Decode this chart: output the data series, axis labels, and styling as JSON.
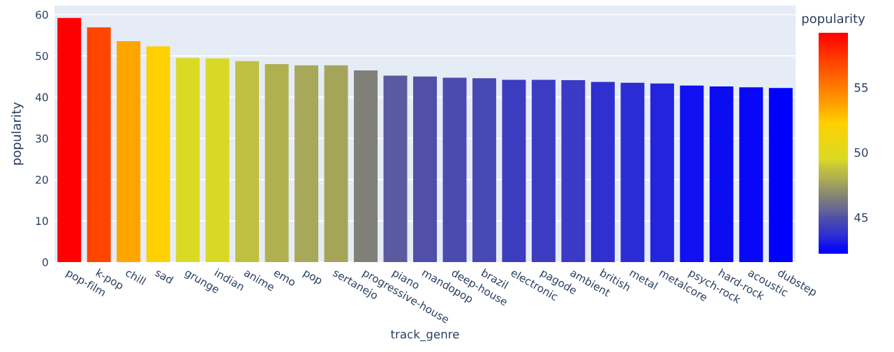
{
  "chart_data": {
    "type": "bar",
    "xlabel": "track_genre",
    "ylabel": "popularity",
    "clabel": "popularity",
    "categories": [
      "pop-film",
      "k-pop",
      "chill",
      "sad",
      "grunge",
      "indian",
      "anime",
      "emo",
      "pop",
      "sertanejo",
      "progressive-house",
      "piano",
      "mandopop",
      "deep-house",
      "brazil",
      "electronic",
      "pagode",
      "ambient",
      "british",
      "metal",
      "metalcore",
      "psych-rock",
      "hard-rock",
      "acoustic",
      "dubstep"
    ],
    "values": [
      59.2,
      56.9,
      53.6,
      52.3,
      49.5,
      49.4,
      48.7,
      48.0,
      47.7,
      47.7,
      46.5,
      45.2,
      45.0,
      44.7,
      44.6,
      44.2,
      44.2,
      44.1,
      43.7,
      43.5,
      43.3,
      42.8,
      42.6,
      42.4,
      42.2
    ],
    "colors": [
      "#ff0000",
      "#ff4500",
      "#ffa500",
      "#ffd000",
      "#dada24",
      "#d9d826",
      "#c0c040",
      "#b0b050",
      "#a8a85a",
      "#a5a55a",
      "#808078",
      "#5a5aa0",
      "#5050a8",
      "#4a4ab0",
      "#4848b2",
      "#3c3cc0",
      "#3c3cc2",
      "#3a3ac4",
      "#3030d0",
      "#2c2cd4",
      "#2424dc",
      "#1010f0",
      "#0c0cf2",
      "#0808f6",
      "#0000ff"
    ],
    "ylim": [
      0,
      62.2
    ],
    "yticks": [
      0,
      10,
      20,
      30,
      40,
      50,
      60
    ],
    "grid": "y",
    "legend": false,
    "clim": [
      42.2,
      59.2
    ],
    "cticks": [
      45,
      50,
      55
    ]
  }
}
